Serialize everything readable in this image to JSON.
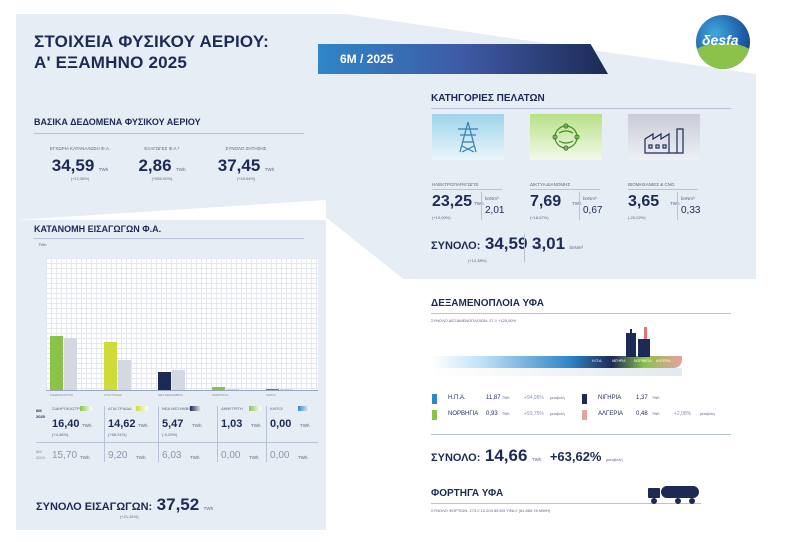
{
  "header": {
    "title_line1": "ΣΤΟΙΧΕΙΑ ΦΥΣΙΚΟΥ ΑΕΡΙΟΥ:",
    "title_line2": "Α' ΕΞΑΜΗΝΟ 2025",
    "period_tag": "6M / 2025",
    "logo_text": "δesfa",
    "colors": {
      "navy": "#1d2a55",
      "panel": "#e7edf4",
      "blue": "#2f86c8",
      "green": "#8bc34a"
    }
  },
  "basic": {
    "title": "ΒΑΣΙΚΑ ΔΕΔΟΜΕΝΑ ΦΥΣΙΚΟΥ ΑΕΡΙΟΥ",
    "items": [
      {
        "label": "ΕΓΧΩΡΙΑ ΚΑΤΑΝΑΛΩΣΗ Φ.Α.",
        "value": "34,59",
        "unit": "TWh",
        "change": "(+12,38%)"
      },
      {
        "label": "ΕΞΑΓΩΓΕΣ Φ.Α.*",
        "value": "2,86",
        "unit": "TWh",
        "change": "(+550,00%)"
      },
      {
        "label": "ΣΥΝΟΛΟ ΖΗΤΗΣΗΣ",
        "value": "37,45",
        "unit": "TWh",
        "change": "(+19,94%)"
      }
    ]
  },
  "customers": {
    "title": "ΚΑΤΗΓΟΡΙΕΣ ΠΕΛΑΤΩΝ",
    "items": [
      {
        "label": "ΗΛΕΚΤΡΟΠΑΡΑΓΩΓΟΙ",
        "value": "23,25",
        "unit": "TWh",
        "change": "(+10,00%)",
        "bcm_unit": "bnNm³",
        "bcm": "2,01",
        "icon": "power-pylon-icon"
      },
      {
        "label": "ΔΙΚΤΥΑ ΔΙΑΝΟΜΗΣ",
        "value": "7,69",
        "unit": "TWh",
        "change": "(+18,67%)",
        "bcm_unit": "bnNm³",
        "bcm": "0,67",
        "icon": "globe-network-icon"
      },
      {
        "label": "ΒΙΟΜΗΧΑΝΙΕΣ & CNG",
        "value": "3,65",
        "unit": "TWh",
        "change": "(-20,02%)",
        "bcm_unit": "bnNm³",
        "bcm": "0,33",
        "icon": "factory-icon"
      }
    ],
    "total_label": "ΣΥΝΟΛΟ:",
    "total_value": "34,59",
    "total_unit": "TWh",
    "total_change": "(+12,38%)",
    "total_bcm": "3,01",
    "total_bcm_unit": "bnNm³"
  },
  "imports": {
    "title": "ΚΑΤΑΝΟΜΗ ΕΙΣΑΓΩΓΩΝ Φ.Α.",
    "yunit": "TWh",
    "year_cur": "6M 2025",
    "year_prev": "6M 2024",
    "points": [
      {
        "name": "ΣΙΔΗΡΟΚΑΣΤΡΟ",
        "cur": "16,40",
        "unit": "TWh",
        "change": "(+4,46%)",
        "prev": "15,70",
        "color": "#8bc34a"
      },
      {
        "name": "ΑΓΙΑ ΤΡΙΑΔΑ",
        "cur": "14,62",
        "unit": "TWh",
        "change": "(+58,91%)",
        "prev": "9,20",
        "color": "#cddc39"
      },
      {
        "name": "ΝΕΑ ΜΕΣΗΜΒΡΙΑ",
        "cur": "5,47",
        "unit": "TWh",
        "change": "(-9,29%)",
        "prev": "6,03",
        "color": "#1d2a55"
      },
      {
        "name": "ΑΜΦΙΤΡΙΤΗ",
        "cur": "1,03",
        "unit": "TWh",
        "change": "",
        "prev": "0,00",
        "color": "#8bc34a"
      },
      {
        "name": "ΚΗΠΟΙ",
        "cur": "0,00",
        "unit": "TWh",
        "change": "",
        "prev": "0,00",
        "color": "#2f86c8"
      }
    ],
    "total_label": "ΣΥΝΟΛΟ ΕΙΣΑΓΩΓΩΝ:",
    "total_value": "37,52",
    "total_unit": "TWh",
    "total_change": "(+21,31%)"
  },
  "chart_data": {
    "type": "bar",
    "categories": [
      "ΣΙΔΗΡΟΚΑΣΤΡΟ",
      "ΑΓΙΑ ΤΡΙΑΔΑ",
      "ΝΕΑ ΜΕΣΗΜΒΡΙΑ",
      "ΑΜΦΙΤΡΙΤΗ",
      "ΚΗΠΟΙ"
    ],
    "series": [
      {
        "name": "6M 2025",
        "values": [
          16.4,
          14.62,
          5.47,
          1.03,
          0.0
        ]
      },
      {
        "name": "6M 2024",
        "values": [
          15.7,
          9.2,
          6.03,
          0.0,
          0.0
        ]
      }
    ],
    "ylabel": "TWh",
    "ylim": [
      0,
      40
    ],
    "grid": true
  },
  "lng": {
    "title": "ΔΕΞΑΜΕΝΟΠΛΟΙΑ ΥΦΑ",
    "summary": "ΣΥΝΟΛΟ ΔΕΞΑΜΕΝΟΠΛΟΙΩΝ: 27 // +125,00%",
    "flow_labels": [
      "Η.Π.Α.",
      "ΝΙΓΗΡΙΑ",
      "ΝΟΡΒΗΓΙΑ",
      "ΑΛΓΕΡΙΑ"
    ],
    "origins": [
      {
        "name": "Η.Π.Α.",
        "value": "11,87",
        "unit": "TWh",
        "change": "+94,95%",
        "change_unit": "μεταβολή",
        "color": "#2f86c8"
      },
      {
        "name": "ΝΙΓΗΡΙΑ",
        "value": "1,37",
        "unit": "TWh",
        "change": "",
        "change_unit": "",
        "color": "#1d2a55"
      },
      {
        "name": "ΝΟΡΒΗΓΙΑ",
        "value": "0,93",
        "unit": "TWh",
        "change": "+93,75%",
        "change_unit": "μεταβολή",
        "color": "#8bc34a"
      },
      {
        "name": "ΑΛΓΕΡΙΑ",
        "value": "0,48",
        "unit": "TWh",
        "change": "+2,08%",
        "change_unit": "μεταβολή",
        "color": "#e8a0a0"
      }
    ],
    "total_label": "ΣΥΝΟΛΟ:",
    "total_value": "14,66",
    "total_unit": "TWh",
    "total_change": "+63,62%",
    "total_change_unit": "μεταβολή"
  },
  "trucks": {
    "title": "ΦΟΡΤΗΓΑ ΥΦΑ",
    "summary": "ΣΥΝΟΛΟ ΦΟΡΤΙΩΝ: 273 // 12.203,55 M3 ΥΦΑ // (81.865,78 MWH)"
  }
}
